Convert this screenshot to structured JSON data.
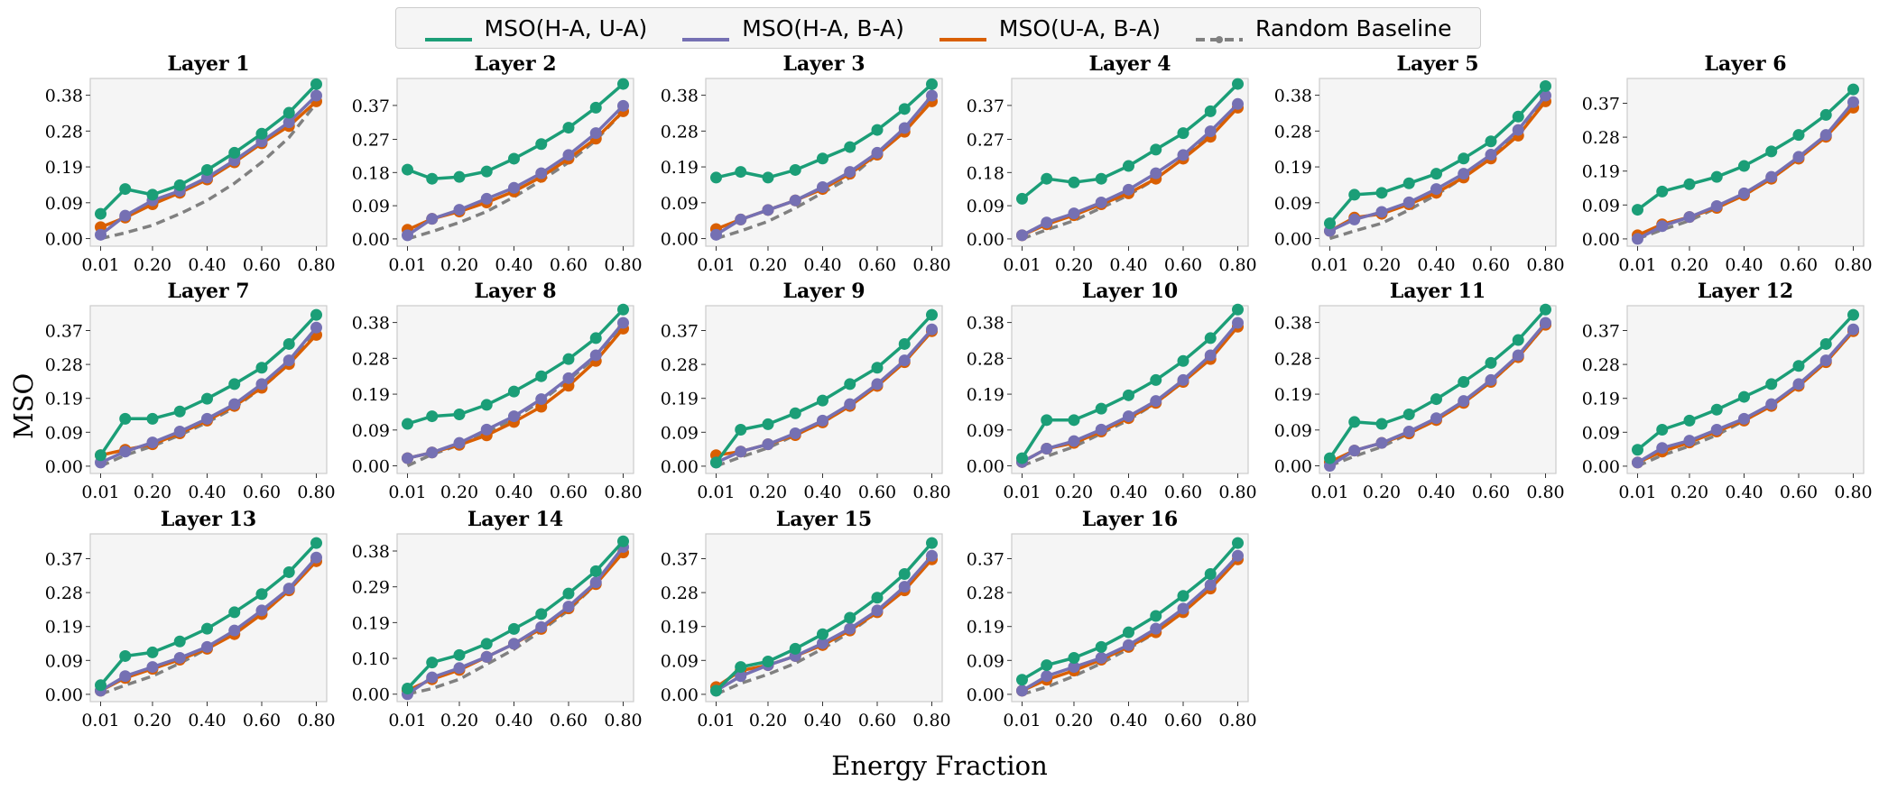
{
  "legend": {
    "entries": [
      {
        "label": "MSO(H-A, U-A)",
        "color": "#1b9e77",
        "style": "solid"
      },
      {
        "label": "MSO(H-A, B-A)",
        "color": "#7570b3",
        "style": "solid"
      },
      {
        "label": "MSO(U-A, B-A)",
        "color": "#d95f02",
        "style": "solid"
      },
      {
        "label": "Random Baseline",
        "color": "#808080",
        "style": "dashed"
      }
    ]
  },
  "axis_titles": {
    "x": "Energy Fraction",
    "y": "MSO"
  },
  "chart_data": {
    "type": "line",
    "x": [
      0.01,
      0.1,
      0.2,
      0.3,
      0.4,
      0.5,
      0.6,
      0.7,
      0.8
    ],
    "xticks": [
      "0.01",
      "0.20",
      "0.40",
      "0.60",
      "0.80"
    ],
    "xtick_values": [
      0.01,
      0.2,
      0.4,
      0.6,
      0.8
    ],
    "series_names": [
      "MSO(H-A, U-A)",
      "MSO(H-A, B-A)",
      "MSO(U-A, B-A)",
      "Random Baseline"
    ],
    "panels": [
      {
        "title": "Layer 1",
        "yticks": [
          "0.00",
          "0.09",
          "0.19",
          "0.28",
          "0.38"
        ],
        "ytick_values": [
          0,
          0.094,
          0.188,
          0.282,
          0.376
        ],
        "ylim": [
          -0.02,
          0.42
        ],
        "series": [
          [
            0.065,
            0.13,
            0.115,
            0.14,
            0.18,
            0.225,
            0.275,
            0.33,
            0.405
          ],
          [
            0.01,
            0.06,
            0.1,
            0.125,
            0.16,
            0.205,
            0.255,
            0.305,
            0.375
          ],
          [
            0.03,
            0.055,
            0.09,
            0.12,
            0.155,
            0.2,
            0.25,
            0.295,
            0.36
          ],
          [
            0.0,
            0.015,
            0.035,
            0.065,
            0.1,
            0.145,
            0.2,
            0.265,
            0.355
          ]
        ]
      },
      {
        "title": "Layer 2",
        "yticks": [
          "0.00",
          "0.09",
          "0.18",
          "0.27",
          "0.37"
        ],
        "ytick_values": [
          0,
          0.091,
          0.182,
          0.273,
          0.366
        ],
        "ylim": [
          -0.02,
          0.44
        ],
        "series": [
          [
            0.19,
            0.165,
            0.17,
            0.185,
            0.22,
            0.26,
            0.305,
            0.36,
            0.425
          ],
          [
            0.01,
            0.055,
            0.08,
            0.11,
            0.14,
            0.18,
            0.23,
            0.29,
            0.365
          ],
          [
            0.025,
            0.055,
            0.075,
            0.1,
            0.13,
            0.17,
            0.22,
            0.275,
            0.35
          ],
          [
            0.0,
            0.02,
            0.045,
            0.075,
            0.115,
            0.16,
            0.21,
            0.27,
            0.35
          ]
        ]
      },
      {
        "title": "Layer 3",
        "yticks": [
          "0.00",
          "0.09",
          "0.19",
          "0.28",
          "0.38"
        ],
        "ytick_values": [
          0,
          0.094,
          0.188,
          0.282,
          0.376
        ],
        "ylim": [
          -0.02,
          0.42
        ],
        "series": [
          [
            0.16,
            0.175,
            0.16,
            0.18,
            0.21,
            0.24,
            0.285,
            0.34,
            0.405
          ],
          [
            0.01,
            0.05,
            0.075,
            0.1,
            0.135,
            0.175,
            0.225,
            0.29,
            0.375
          ],
          [
            0.025,
            0.05,
            0.075,
            0.1,
            0.13,
            0.17,
            0.22,
            0.28,
            0.36
          ],
          [
            0.0,
            0.02,
            0.045,
            0.08,
            0.12,
            0.16,
            0.22,
            0.285,
            0.37
          ]
        ]
      },
      {
        "title": "Layer 4",
        "yticks": [
          "0.00",
          "0.09",
          "0.18",
          "0.27",
          "0.37"
        ],
        "ytick_values": [
          0,
          0.091,
          0.182,
          0.273,
          0.366
        ],
        "ylim": [
          -0.02,
          0.44
        ],
        "series": [
          [
            0.11,
            0.165,
            0.155,
            0.165,
            0.2,
            0.245,
            0.29,
            0.35,
            0.425
          ],
          [
            0.01,
            0.045,
            0.07,
            0.1,
            0.135,
            0.18,
            0.23,
            0.295,
            0.37
          ],
          [
            0.01,
            0.04,
            0.065,
            0.095,
            0.125,
            0.165,
            0.22,
            0.28,
            0.36
          ],
          [
            0.0,
            0.025,
            0.05,
            0.085,
            0.12,
            0.165,
            0.22,
            0.285,
            0.365
          ]
        ]
      },
      {
        "title": "Layer 5",
        "yticks": [
          "0.00",
          "0.09",
          "0.19",
          "0.28",
          "0.38"
        ],
        "ytick_values": [
          0,
          0.094,
          0.188,
          0.282,
          0.376
        ],
        "ylim": [
          -0.02,
          0.42
        ],
        "series": [
          [
            0.04,
            0.115,
            0.12,
            0.145,
            0.17,
            0.21,
            0.255,
            0.32,
            0.4
          ],
          [
            0.02,
            0.05,
            0.07,
            0.095,
            0.13,
            0.17,
            0.22,
            0.285,
            0.375
          ],
          [
            0.02,
            0.055,
            0.065,
            0.09,
            0.12,
            0.16,
            0.21,
            0.27,
            0.36
          ],
          [
            0.0,
            0.02,
            0.04,
            0.075,
            0.115,
            0.16,
            0.215,
            0.28,
            0.365
          ]
        ]
      },
      {
        "title": "Layer 6",
        "yticks": [
          "0.00",
          "0.09",
          "0.19",
          "0.28",
          "0.37"
        ],
        "ytick_values": [
          0,
          0.093,
          0.186,
          0.279,
          0.372
        ],
        "ylim": [
          -0.02,
          0.44
        ],
        "series": [
          [
            0.08,
            0.13,
            0.15,
            0.17,
            0.2,
            0.24,
            0.285,
            0.34,
            0.41
          ],
          [
            0.0,
            0.035,
            0.06,
            0.09,
            0.125,
            0.17,
            0.225,
            0.285,
            0.375
          ],
          [
            0.01,
            0.04,
            0.06,
            0.085,
            0.12,
            0.165,
            0.22,
            0.28,
            0.36
          ],
          [
            0.0,
            0.025,
            0.05,
            0.085,
            0.12,
            0.165,
            0.22,
            0.285,
            0.37
          ]
        ]
      },
      {
        "title": "Layer 7",
        "yticks": [
          "0.00",
          "0.09",
          "0.19",
          "0.28",
          "0.37"
        ],
        "ytick_values": [
          0,
          0.093,
          0.186,
          0.279,
          0.372
        ],
        "ylim": [
          -0.02,
          0.44
        ],
        "series": [
          [
            0.03,
            0.13,
            0.13,
            0.15,
            0.185,
            0.225,
            0.27,
            0.335,
            0.415
          ],
          [
            0.01,
            0.04,
            0.065,
            0.095,
            0.13,
            0.17,
            0.225,
            0.29,
            0.38
          ],
          [
            0.03,
            0.045,
            0.06,
            0.09,
            0.125,
            0.165,
            0.215,
            0.28,
            0.36
          ],
          [
            0.0,
            0.03,
            0.055,
            0.085,
            0.12,
            0.16,
            0.215,
            0.28,
            0.37
          ]
        ]
      },
      {
        "title": "Layer 8",
        "yticks": [
          "0.00",
          "0.09",
          "0.19",
          "0.28",
          "0.38"
        ],
        "ytick_values": [
          0,
          0.094,
          0.188,
          0.282,
          0.376
        ],
        "ylim": [
          -0.02,
          0.42
        ],
        "series": [
          [
            0.11,
            0.13,
            0.135,
            0.16,
            0.195,
            0.235,
            0.28,
            0.335,
            0.41
          ],
          [
            0.02,
            0.035,
            0.06,
            0.095,
            0.13,
            0.175,
            0.23,
            0.29,
            0.375
          ],
          [
            0.02,
            0.035,
            0.055,
            0.08,
            0.115,
            0.155,
            0.21,
            0.275,
            0.36
          ],
          [
            0.0,
            0.03,
            0.055,
            0.085,
            0.125,
            0.17,
            0.225,
            0.285,
            0.365
          ]
        ]
      },
      {
        "title": "Layer 9",
        "yticks": [
          "0.00",
          "0.09",
          "0.19",
          "0.28",
          "0.37"
        ],
        "ytick_values": [
          0,
          0.093,
          0.186,
          0.279,
          0.372
        ],
        "ylim": [
          -0.02,
          0.44
        ],
        "series": [
          [
            0.01,
            0.1,
            0.115,
            0.145,
            0.18,
            0.225,
            0.27,
            0.335,
            0.415
          ],
          [
            0.01,
            0.04,
            0.06,
            0.09,
            0.125,
            0.17,
            0.225,
            0.29,
            0.375
          ],
          [
            0.03,
            0.04,
            0.06,
            0.085,
            0.12,
            0.165,
            0.22,
            0.285,
            0.37
          ],
          [
            0.0,
            0.025,
            0.05,
            0.085,
            0.12,
            0.165,
            0.22,
            0.285,
            0.37
          ]
        ]
      },
      {
        "title": "Layer 10",
        "yticks": [
          "0.00",
          "0.09",
          "0.19",
          "0.28",
          "0.38"
        ],
        "ytick_values": [
          0,
          0.094,
          0.188,
          0.282,
          0.376
        ],
        "ylim": [
          -0.02,
          0.42
        ],
        "series": [
          [
            0.02,
            0.12,
            0.12,
            0.15,
            0.185,
            0.225,
            0.275,
            0.335,
            0.41
          ],
          [
            0.01,
            0.045,
            0.065,
            0.095,
            0.13,
            0.17,
            0.225,
            0.29,
            0.375
          ],
          [
            0.01,
            0.045,
            0.06,
            0.09,
            0.125,
            0.165,
            0.22,
            0.28,
            0.365
          ],
          [
            0.0,
            0.025,
            0.05,
            0.085,
            0.12,
            0.165,
            0.22,
            0.285,
            0.37
          ]
        ]
      },
      {
        "title": "Layer 11",
        "yticks": [
          "0.00",
          "0.09",
          "0.19",
          "0.28",
          "0.38"
        ],
        "ytick_values": [
          0,
          0.094,
          0.188,
          0.282,
          0.376
        ],
        "ylim": [
          -0.02,
          0.42
        ],
        "series": [
          [
            0.02,
            0.115,
            0.11,
            0.135,
            0.175,
            0.22,
            0.27,
            0.33,
            0.41
          ],
          [
            0.0,
            0.04,
            0.06,
            0.09,
            0.125,
            0.17,
            0.225,
            0.29,
            0.375
          ],
          [
            0.01,
            0.04,
            0.06,
            0.085,
            0.12,
            0.165,
            0.22,
            0.285,
            0.37
          ],
          [
            0.0,
            0.025,
            0.05,
            0.085,
            0.12,
            0.165,
            0.22,
            0.285,
            0.37
          ]
        ]
      },
      {
        "title": "Layer 12",
        "yticks": [
          "0.00",
          "0.09",
          "0.19",
          "0.28",
          "0.37"
        ],
        "ytick_values": [
          0,
          0.093,
          0.186,
          0.279,
          0.372
        ],
        "ylim": [
          -0.02,
          0.44
        ],
        "series": [
          [
            0.045,
            0.1,
            0.125,
            0.155,
            0.19,
            0.225,
            0.275,
            0.335,
            0.415
          ],
          [
            0.01,
            0.05,
            0.07,
            0.1,
            0.13,
            0.17,
            0.225,
            0.29,
            0.375
          ],
          [
            0.01,
            0.04,
            0.065,
            0.095,
            0.125,
            0.165,
            0.22,
            0.285,
            0.37
          ],
          [
            0.0,
            0.03,
            0.055,
            0.085,
            0.125,
            0.165,
            0.22,
            0.285,
            0.37
          ]
        ]
      },
      {
        "title": "Layer 13",
        "yticks": [
          "0.00",
          "0.09",
          "0.19",
          "0.28",
          "0.37"
        ],
        "ytick_values": [
          0,
          0.093,
          0.186,
          0.279,
          0.372
        ],
        "ylim": [
          -0.02,
          0.44
        ],
        "series": [
          [
            0.025,
            0.105,
            0.115,
            0.145,
            0.18,
            0.225,
            0.275,
            0.335,
            0.415
          ],
          [
            0.01,
            0.05,
            0.075,
            0.1,
            0.13,
            0.175,
            0.23,
            0.29,
            0.375
          ],
          [
            0.01,
            0.045,
            0.07,
            0.095,
            0.125,
            0.165,
            0.22,
            0.285,
            0.365
          ],
          [
            0.0,
            0.025,
            0.05,
            0.085,
            0.125,
            0.17,
            0.22,
            0.285,
            0.37
          ]
        ]
      },
      {
        "title": "Layer 14",
        "yticks": [
          "0.00",
          "0.10",
          "0.19",
          "0.29",
          "0.38"
        ],
        "ytick_values": [
          0,
          0.096,
          0.192,
          0.288,
          0.384
        ],
        "ylim": [
          -0.02,
          0.43
        ],
        "series": [
          [
            0.015,
            0.085,
            0.105,
            0.135,
            0.175,
            0.215,
            0.27,
            0.33,
            0.41
          ],
          [
            0.0,
            0.045,
            0.07,
            0.1,
            0.135,
            0.18,
            0.235,
            0.3,
            0.395
          ],
          [
            0.01,
            0.04,
            0.065,
            0.1,
            0.135,
            0.175,
            0.23,
            0.295,
            0.38
          ],
          [
            0.0,
            0.015,
            0.04,
            0.08,
            0.12,
            0.17,
            0.225,
            0.295,
            0.385
          ]
        ]
      },
      {
        "title": "Layer 15",
        "yticks": [
          "0.00",
          "0.09",
          "0.19",
          "0.28",
          "0.37"
        ],
        "ytick_values": [
          0,
          0.093,
          0.186,
          0.279,
          0.372
        ],
        "ylim": [
          -0.02,
          0.44
        ],
        "series": [
          [
            0.01,
            0.075,
            0.09,
            0.125,
            0.165,
            0.21,
            0.265,
            0.33,
            0.415
          ],
          [
            0.01,
            0.05,
            0.08,
            0.105,
            0.14,
            0.18,
            0.23,
            0.295,
            0.38
          ],
          [
            0.02,
            0.065,
            0.08,
            0.105,
            0.135,
            0.175,
            0.225,
            0.285,
            0.37
          ],
          [
            0.0,
            0.03,
            0.055,
            0.085,
            0.125,
            0.17,
            0.225,
            0.29,
            0.375
          ]
        ]
      },
      {
        "title": "Layer 16",
        "yticks": [
          "0.00",
          "0.09",
          "0.19",
          "0.28",
          "0.37"
        ],
        "ytick_values": [
          0,
          0.093,
          0.186,
          0.279,
          0.372
        ],
        "ylim": [
          -0.02,
          0.44
        ],
        "series": [
          [
            0.04,
            0.08,
            0.1,
            0.13,
            0.17,
            0.215,
            0.27,
            0.33,
            0.415
          ],
          [
            0.01,
            0.05,
            0.075,
            0.1,
            0.135,
            0.18,
            0.235,
            0.3,
            0.38
          ],
          [
            0.01,
            0.04,
            0.065,
            0.095,
            0.13,
            0.17,
            0.225,
            0.29,
            0.37
          ],
          [
            0.0,
            0.02,
            0.05,
            0.085,
            0.125,
            0.17,
            0.225,
            0.29,
            0.375
          ]
        ]
      }
    ]
  }
}
